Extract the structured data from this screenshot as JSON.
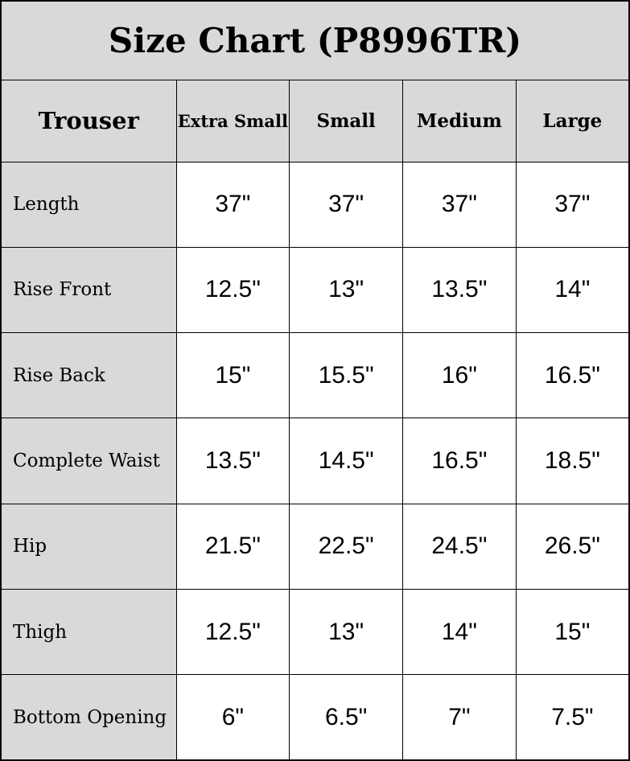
{
  "chart_data": {
    "type": "table",
    "title": "Size Chart (P8996TR)",
    "corner_header": "Trouser",
    "columns": [
      "Extra Small",
      "Small",
      "Medium",
      "Large"
    ],
    "rows": [
      {
        "label": "Length",
        "values": [
          "37\"",
          "37\"",
          "37\"",
          "37\""
        ]
      },
      {
        "label": "Rise Front",
        "values": [
          "12.5\"",
          "13\"",
          "13.5\"",
          "14\""
        ]
      },
      {
        "label": "Rise Back",
        "values": [
          "15\"",
          "15.5\"",
          "16\"",
          "16.5\""
        ]
      },
      {
        "label": "Complete Waist",
        "values": [
          "13.5\"",
          "14.5\"",
          "16.5\"",
          "18.5\""
        ]
      },
      {
        "label": "Hip",
        "values": [
          "21.5\"",
          "22.5\"",
          "24.5\"",
          "26.5\""
        ]
      },
      {
        "label": "Thigh",
        "values": [
          "12.5\"",
          "13\"",
          "14\"",
          "15\""
        ]
      },
      {
        "label": "Bottom Opening",
        "values": [
          "6\"",
          "6.5\"",
          "7\"",
          "7.5\""
        ]
      }
    ],
    "layout": {
      "header_bg": "#d9d9d9",
      "cell_bg": "#ffffff",
      "border_color": "#000000",
      "text_color": "#000000"
    }
  }
}
